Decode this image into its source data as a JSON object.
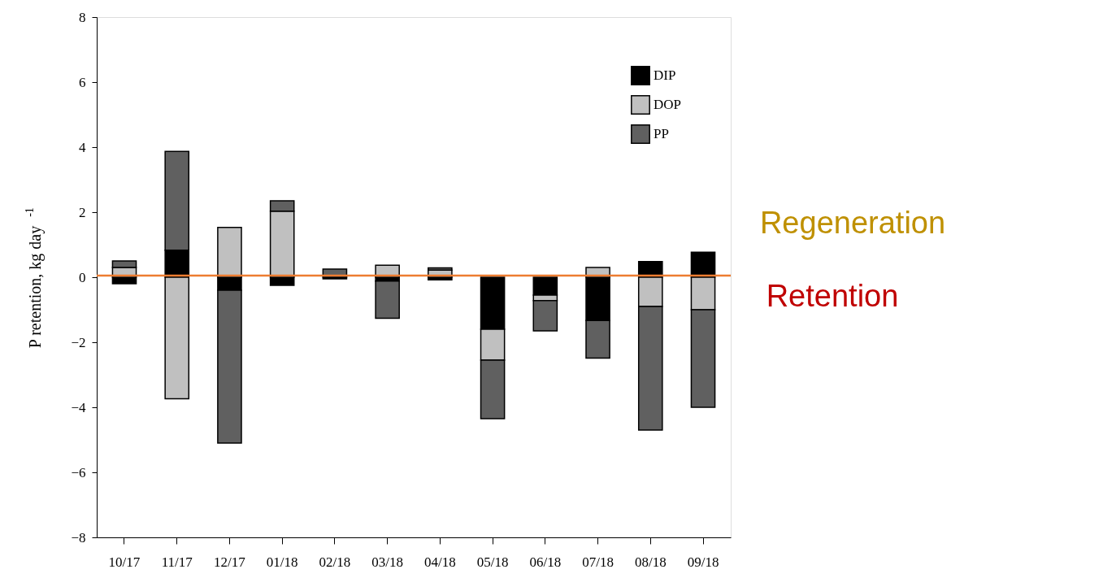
{
  "chart_data": {
    "type": "bar",
    "stacked": true,
    "ylabel": "P retention, kg day$^{-1}$",
    "categories": [
      "10/17",
      "11/17",
      "12/17",
      "01/18",
      "02/18",
      "03/18",
      "04/18",
      "05/18",
      "06/18",
      "07/18",
      "08/18",
      "09/18"
    ],
    "series": [
      {
        "name": "DIP",
        "color": "#000000",
        "values": [
          -0.2,
          0.83,
          -0.4,
          -0.25,
          -0.05,
          -0.12,
          -0.08,
          -1.6,
          -0.55,
          -1.33,
          0.48,
          0.77
        ]
      },
      {
        "name": "DOP",
        "color": "#c0c0c0",
        "values": [
          0.3,
          -3.74,
          1.53,
          2.03,
          null,
          0.37,
          0.22,
          -0.95,
          -0.17,
          0.3,
          -0.9,
          -1.0
        ]
      },
      {
        "name": "PP",
        "color": "#606060",
        "values": [
          0.2,
          3.04,
          -4.7,
          0.32,
          0.25,
          -1.14,
          0.07,
          -1.8,
          -0.93,
          -1.16,
          -3.8,
          -3.0
        ]
      }
    ],
    "ylim": [
      -8,
      8
    ],
    "yticks": [
      -8,
      -6,
      -4,
      -2,
      0,
      2,
      4,
      6,
      8
    ],
    "grid": false,
    "legend": "top right",
    "ref_lines": [
      {
        "axis": "y",
        "value": 0.05,
        "color": "#ed7d31"
      }
    ],
    "annotations": [
      "Regeneration",
      "Retention"
    ]
  }
}
